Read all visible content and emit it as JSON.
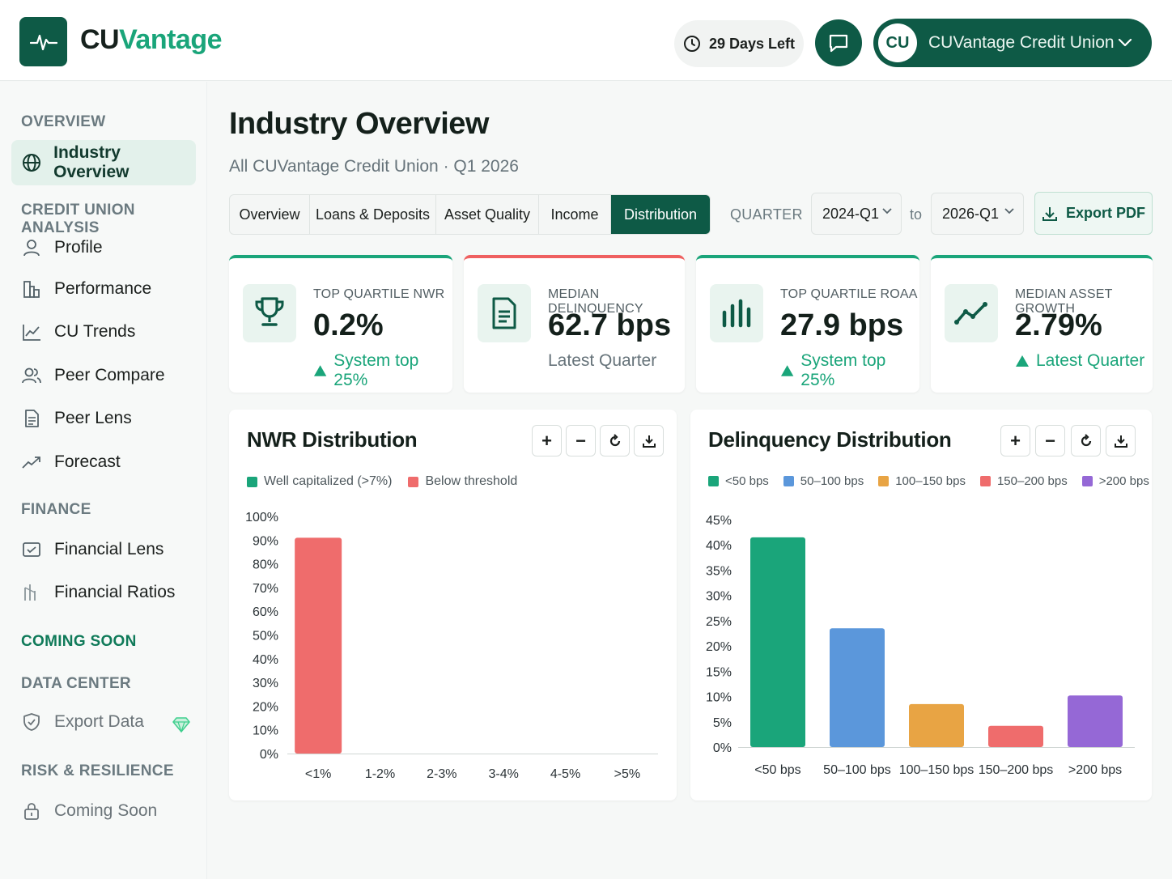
{
  "header": {
    "brand_part1": "CU",
    "brand_part2": "Vantage",
    "trial_text": "29 Days Left",
    "org_initials": "CU",
    "org_name": "CUVantage Credit Union"
  },
  "sidebar": {
    "sections": {
      "overview": "OVERVIEW",
      "credit_union_analysis": "CREDIT UNION ANALYSIS",
      "finance": "FINANCE",
      "coming_soon": "COMING SOON",
      "data_center": "DATA CENTER",
      "risk_resilience": "RISK & RESILIENCE"
    },
    "items": {
      "industry_overview": "Industry Overview",
      "profile": "Profile",
      "performance": "Performance",
      "cu_trends": "CU Trends",
      "peer_compare": "Peer Compare",
      "peer_lens": "Peer Lens",
      "forecast": "Forecast",
      "financial_lens": "Financial Lens",
      "financial_ratios": "Financial Ratios",
      "export_data": "Export Data",
      "coming_soon": "Coming Soon"
    }
  },
  "main": {
    "title": "Industry Overview",
    "subtitle": "All CUVantage Credit Union · Q1 2026",
    "tabs": [
      "Overview",
      "Loans & Deposits",
      "Asset Quality",
      "Income",
      "Distribution"
    ],
    "active_tab": "Distribution",
    "quarter_label": "QUARTER",
    "quarter_from": "2024-Q1",
    "to_label": "to",
    "quarter_to": "2026-Q1",
    "export_label": "Export PDF"
  },
  "kpis": [
    {
      "label": "TOP QUARTILE NWR",
      "value": "0.2%",
      "foot": "System top 25%",
      "trend": "up"
    },
    {
      "label": "MEDIAN DELINQUENCY",
      "value": "62.7 bps",
      "foot": "Latest Quarter",
      "trend": "none"
    },
    {
      "label": "TOP QUARTILE ROAA",
      "value": "27.9 bps",
      "foot": "System top 25%",
      "trend": "up"
    },
    {
      "label": "MEDIAN ASSET GROWTH",
      "value": "2.79%",
      "foot": "Latest Quarter",
      "trend": "up"
    }
  ],
  "colors": {
    "brand_green": "#0e5a46",
    "accent_green": "#1aa57a",
    "red": "#ef6c6c",
    "blue": "#5b97db",
    "orange": "#e8a444",
    "purple": "#9568d6"
  },
  "chart_data": [
    {
      "type": "bar",
      "title": "NWR Distribution",
      "legend": [
        {
          "name": "Well capitalized (>7%)",
          "color": "#1aa57a"
        },
        {
          "name": "Below threshold",
          "color": "#ef6c6c"
        }
      ],
      "categories": [
        "<1%",
        "1-2%",
        "2-3%",
        "3-4%",
        "4-5%",
        ">5%"
      ],
      "values": [
        91,
        0,
        0,
        0,
        0,
        0
      ],
      "bar_colors": [
        "#ef6c6c",
        "#ef6c6c",
        "#ef6c6c",
        "#ef6c6c",
        "#ef6c6c",
        "#ef6c6c"
      ],
      "ylim": [
        0,
        100
      ],
      "yticks": [
        "0%",
        "10%",
        "20%",
        "30%",
        "40%",
        "50%",
        "60%",
        "70%",
        "80%",
        "90%",
        "100%"
      ],
      "grid": false
    },
    {
      "type": "bar",
      "title": "Delinquency Distribution",
      "legend": [
        {
          "name": "<50 bps",
          "color": "#1aa57a"
        },
        {
          "name": "50–100 bps",
          "color": "#5b97db"
        },
        {
          "name": "100–150 bps",
          "color": "#e8a444"
        },
        {
          "name": "150–200 bps",
          "color": "#ef6c6c"
        },
        {
          "name": ">200 bps",
          "color": "#9568d6"
        }
      ],
      "categories": [
        "<50 bps",
        "50–100 bps",
        "100–150 bps",
        "150–200 bps",
        ">200 bps"
      ],
      "values": [
        41.5,
        23.5,
        8.5,
        4.2,
        10.2
      ],
      "bar_colors": [
        "#1aa57a",
        "#5b97db",
        "#e8a444",
        "#ef6c6c",
        "#9568d6"
      ],
      "ylim": [
        0,
        45
      ],
      "yticks": [
        "0%",
        "5%",
        "10%",
        "15%",
        "20%",
        "25%",
        "30%",
        "35%",
        "40%",
        "45%"
      ],
      "grid": false
    }
  ]
}
